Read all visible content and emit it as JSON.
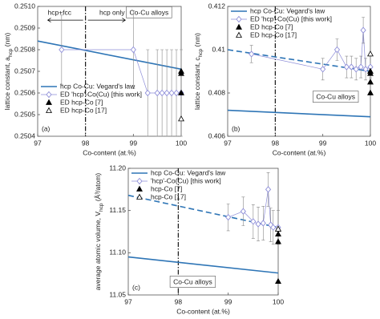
{
  "chart_data": [
    {
      "type": "line",
      "panel_label": "(a)",
      "y_label": "lattice constant, a",
      "y_label_sub": "hcp",
      "y_label_end": " (nm)",
      "x_label": "Co-content (at.%)",
      "xlim": [
        97,
        100
      ],
      "xticks": [
        97,
        98,
        99,
        100
      ],
      "ylim": [
        0.2504,
        0.251
      ],
      "yticks": [
        0.2504,
        0.2505,
        0.2506,
        0.2507,
        0.2508,
        0.2509,
        {
          "value": 0.251,
          "label": "0.2510"
        }
      ],
      "divider_x": 98,
      "annotations": [
        "hcp+fcc",
        "hcp only",
        "Co-Cu alloys"
      ],
      "legend": "lower left",
      "series": [
        {
          "name": "hcp Co-Cu: Vegard's law",
          "color": "#2e75b6",
          "style": "solid",
          "x": [
            97,
            100
          ],
          "values": [
            0.25084,
            0.25071
          ]
        },
        {
          "name": "ED 'hcp'-Co(Cu) [this work]",
          "color": "#8e8ed8",
          "style": "thin",
          "marker": "diamond-open",
          "x": [
            97.5,
            99,
            99.3,
            99.5,
            99.6,
            99.7,
            99.8,
            99.9,
            100
          ],
          "values": [
            0.2508,
            0.2508,
            0.2506,
            0.2506,
            0.2506,
            0.2506,
            0.2506,
            0.2506,
            0.2506
          ],
          "errors": [
            0.00016,
            0.00018,
            0.0002,
            0.0002,
            0.0002,
            0.0002,
            0.0002,
            0.0002,
            0.0002
          ]
        },
        {
          "name": "ED hcp-Co [7]",
          "color": "#000000",
          "marker": "triangle",
          "x": [
            100,
            100,
            100
          ],
          "values": [
            0.2507,
            0.25069,
            0.2506
          ]
        },
        {
          "name": "ED hcp-Co [17]",
          "color": "#000000",
          "marker": "triangle-open",
          "x": [
            100
          ],
          "values": [
            0.25048
          ]
        }
      ]
    },
    {
      "type": "line",
      "panel_label": "(b)",
      "y_label": "lattice constant, c",
      "y_label_sub": "hcp",
      "y_label_end": " (nm)",
      "x_label": "Co-content (at.%)",
      "xlim": [
        97,
        100
      ],
      "xticks": [
        97,
        98,
        99,
        100
      ],
      "ylim": [
        0.406,
        0.412
      ],
      "yticks": [
        0.406,
        0.408,
        0.41,
        0.412
      ],
      "divider_x": 98,
      "annotations": [
        "Co-Cu alloys"
      ],
      "legend": "upper left",
      "series": [
        {
          "name": "hcp Co-Cu: Vegard's law",
          "color": "#2e75b6",
          "style": "solid",
          "x": [
            97,
            100
          ],
          "values": [
            0.4072,
            0.4069
          ]
        },
        {
          "color": "#2e75b6",
          "style": "dashed",
          "x": [
            97,
            100
          ],
          "values": [
            0.41,
            0.409
          ]
        },
        {
          "name": "ED 'hcp'-Co(Cu) [this work]",
          "color": "#8e8ed8",
          "style": "thin",
          "marker": "diamond-open",
          "x": [
            97.5,
            99,
            99.3,
            99.5,
            99.6,
            99.7,
            99.8,
            99.85,
            99.9,
            100
          ],
          "values": [
            0.4098,
            0.4091,
            0.41,
            0.4092,
            0.4092,
            0.4091,
            0.4092,
            0.4109,
            0.4091,
            0.4092
          ],
          "errors": [
            0.0004,
            0.0005,
            0.0005,
            0.0005,
            0.0005,
            0.0005,
            0.0005,
            0.0006,
            0.0005,
            0.0005
          ]
        },
        {
          "name": "ED hcp-Co [7]",
          "color": "#000000",
          "marker": "triangle",
          "x": [
            100,
            100,
            100,
            100
          ],
          "values": [
            0.409,
            0.4089,
            0.4085,
            0.408
          ]
        },
        {
          "name": "ED hcp-Co [17]",
          "color": "#000000",
          "marker": "triangle-open",
          "x": [
            100
          ],
          "values": [
            0.4098
          ]
        }
      ]
    },
    {
      "type": "line",
      "panel_label": "(c)",
      "y_label": "average atomic volume, V",
      "y_label_sub": "hcp",
      "y_label_end": " (Å³/atom)",
      "x_label": "Co-content (at.%)",
      "xlim": [
        97,
        100
      ],
      "xticks": [
        97,
        98,
        99,
        100
      ],
      "ylim": [
        11.05,
        11.2
      ],
      "yticks": [
        11.05,
        {
          "value": 11.1,
          "label": "11.10"
        },
        11.15,
        {
          "value": 11.2,
          "label": "11.20"
        }
      ],
      "divider_x": 98,
      "annotations": [
        "Co-Cu alloys"
      ],
      "legend": "upper left",
      "series": [
        {
          "name": "hcp Co-Cu: Vegard's law",
          "color": "#2e75b6",
          "style": "solid",
          "x": [
            97,
            100
          ],
          "values": [
            11.095,
            11.076
          ]
        },
        {
          "color": "#2e75b6",
          "style": "dashed",
          "x": [
            97,
            100
          ],
          "values": [
            11.168,
            11.13
          ]
        },
        {
          "name": "'hcp'-Co(Cu) [this work]",
          "color": "#8e8ed8",
          "style": "thin",
          "marker": "diamond-open",
          "x": [
            99,
            99.3,
            99.5,
            99.6,
            99.7,
            99.8,
            99.85,
            99.9,
            100
          ],
          "values": [
            11.142,
            11.149,
            11.137,
            11.134,
            11.135,
            11.175,
            11.133,
            11.13,
            11.13
          ],
          "errors": [
            0.016,
            0.017,
            0.02,
            0.02,
            0.02,
            0.02,
            0.02,
            0.02,
            0.02
          ]
        },
        {
          "name": "hcp-Co [7]",
          "color": "#000000",
          "marker": "triangle",
          "x": [
            100,
            100,
            100,
            100
          ],
          "values": [
            11.128,
            11.122,
            11.113,
            11.066
          ]
        },
        {
          "name": "hcp-Co [17]",
          "color": "#000000",
          "marker": "triangle-open",
          "x": [
            100
          ],
          "values": [
            11.128
          ]
        }
      ]
    }
  ]
}
